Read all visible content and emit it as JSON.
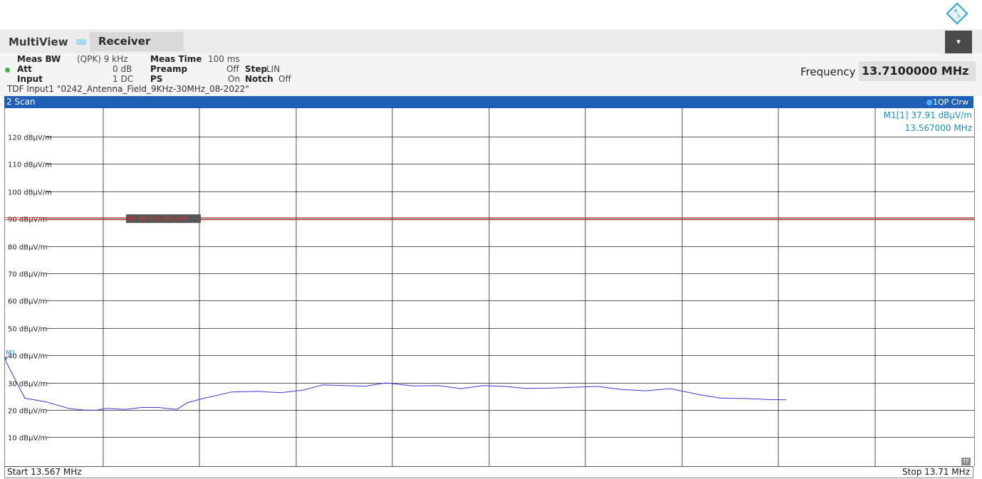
{
  "header": {
    "tab_multiview": "MultiView",
    "tab_receiver": "Receiver",
    "menu_icon": "chevron-down-icon",
    "logo_icon": "rohde-schwarz-logo"
  },
  "settings": {
    "meas_bw_label": "Meas BW",
    "meas_bw_value": "(QPK) 9 kHz",
    "meas_time_label": "Meas Time",
    "meas_time_value": "100 ms",
    "att_label": "Att",
    "att_value": "0 dB",
    "preamp_label": "Preamp",
    "preamp_value": "Off",
    "step_label": "Step",
    "step_value": "LIN",
    "input_label": "Input",
    "input_value": "1 DC",
    "ps_label": "PS",
    "ps_value": "On",
    "notch_label": "Notch",
    "notch_value": "Off",
    "tdf": "TDF Input1 \"0242_Antenna_Field_9KHz-30MHz_08-2022\""
  },
  "frequency": {
    "label": "Frequency",
    "value": "13.7100000 MHz"
  },
  "scan": {
    "title": "2 Scan",
    "trace_label": "1QP Clrw",
    "marker_line1": "M1[1]  37.91 dBµV/m",
    "marker_line2": "13.567000 MHz",
    "marker_tag": "M1",
    "limit_label": "H1 90.000 dBµV/m",
    "start": "Start 13.567 MHz",
    "stop": "Stop 13.71 MHz",
    "tf_badge": "TF"
  },
  "colors": {
    "trace": "#3a3ad8",
    "limit": "#c83232",
    "marker": "#1a8fd4",
    "header_bar": "#1f5fb5"
  },
  "chart_data": {
    "type": "line",
    "ylabel_unit": "dBµV/m",
    "ylim": [
      0,
      130
    ],
    "xlim": [
      13.567,
      13.71
    ],
    "y_ticks": [
      "10 dBµV/m",
      "20 dBµV/m",
      "30 dBµV/m",
      "40 dBµV/m",
      "50 dBµV/m",
      "60 dBµV/m",
      "70 dBµV/m",
      "80 dBµV/m",
      "90 dBµV/m",
      "100 dBµV/m",
      "110 dBµV/m",
      "120 dBµV/m"
    ],
    "limit_line": 90,
    "series": [
      {
        "x": [
          13.567,
          13.5698,
          13.5728,
          13.5763,
          13.5784,
          13.5802,
          13.5818,
          13.5845,
          13.5868,
          13.5893,
          13.592,
          13.5935,
          13.5955,
          13.6,
          13.6038,
          13.6072,
          13.6105,
          13.6133,
          13.6163,
          13.6195,
          13.6225,
          13.6265,
          13.6302,
          13.6335,
          13.6368,
          13.64,
          13.643,
          13.6465,
          13.65,
          13.6535,
          13.657,
          13.6605,
          13.664,
          13.6685,
          13.6715,
          13.675,
          13.6785,
          13.681
        ],
        "values": [
          37.9,
          24.3,
          23.0,
          20.5,
          20.0,
          19.9,
          20.6,
          20.2,
          20.9,
          20.9,
          20.2,
          22.6,
          24.0,
          26.6,
          26.8,
          26.3,
          27.3,
          29.2,
          28.9,
          28.7,
          29.9,
          28.8,
          28.9,
          27.8,
          28.9,
          28.6,
          27.9,
          28.0,
          28.3,
          28.6,
          27.5,
          27.0,
          27.8,
          25.5,
          24.3,
          24.2,
          23.8,
          23.7
        ]
      }
    ]
  }
}
